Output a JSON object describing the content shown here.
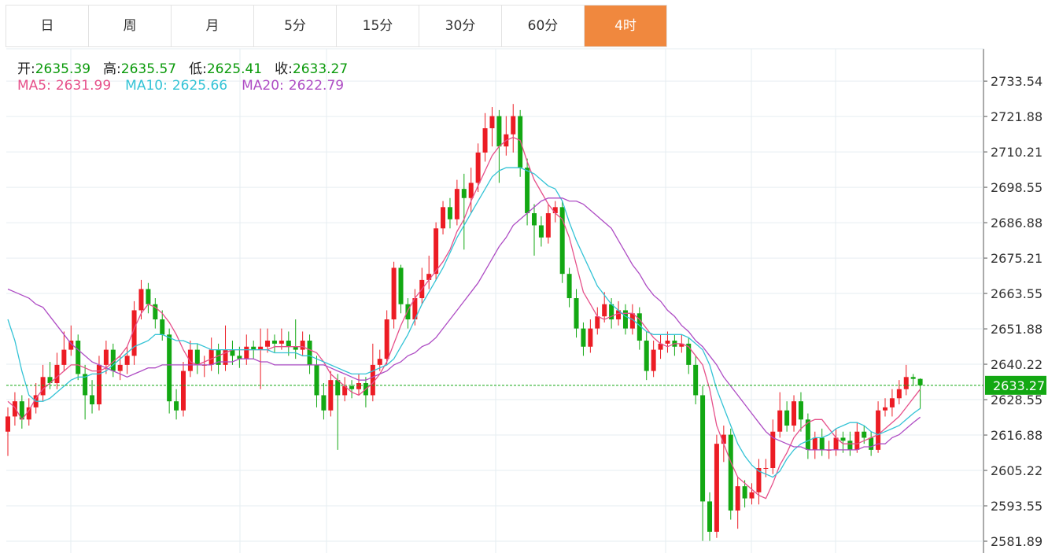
{
  "tabs": {
    "items": [
      "日",
      "周",
      "月",
      "5分",
      "15分",
      "30分",
      "60分",
      "4时"
    ],
    "active": 7
  },
  "chart_data": {
    "type": "candlestick",
    "ohlc_labels": [
      "开:",
      "高:",
      "低:",
      "收:"
    ],
    "open": [
      2618,
      2623,
      2628,
      2622,
      2626,
      2630,
      2636,
      2634,
      2640,
      2645,
      2648,
      2637,
      2630,
      2627,
      2640,
      2645,
      2638,
      2640,
      2643,
      2658,
      2665,
      2660,
      2655,
      2650,
      2628,
      2625,
      2638,
      2645,
      2640,
      2640,
      2645,
      2640,
      2645,
      2643,
      2642,
      2646,
      2645,
      2646,
      2648,
      2647,
      2648,
      2646,
      2645,
      2648,
      2640,
      2630,
      2625,
      2635,
      2630,
      2633,
      2632,
      2634,
      2630,
      2640,
      2642,
      2655,
      2672,
      2660,
      2655,
      2662,
      2668,
      2670,
      2685,
      2692,
      2688,
      2698,
      2695,
      2700,
      2710,
      2718,
      2722,
      2712,
      2716,
      2722,
      2705,
      2690,
      2686,
      2682,
      2690,
      2692,
      2670,
      2662,
      2652,
      2646,
      2652,
      2656,
      2660,
      2655,
      2658,
      2652,
      2657,
      2648,
      2638,
      2645,
      2647,
      2648,
      2646,
      2647,
      2640,
      2630,
      2595,
      2585,
      2614,
      2617,
      2592,
      2600,
      2596,
      2598,
      2606,
      2606,
      2618,
      2625,
      2620,
      2628,
      2622,
      2612,
      2616,
      2612,
      2612,
      2616,
      2615,
      2612,
      2618,
      2616,
      2612,
      2625,
      2626,
      2629,
      2632,
      2636,
      2635.39
    ],
    "high": [
      2626,
      2631,
      2630,
      2629,
      2634,
      2640,
      2641,
      2644,
      2651,
      2653,
      2650,
      2640,
      2635,
      2643,
      2648,
      2647,
      2643,
      2646,
      2661,
      2668,
      2667,
      2662,
      2658,
      2652,
      2632,
      2641,
      2648,
      2647,
      2643,
      2649,
      2647,
      2653,
      2648,
      2646,
      2650,
      2648,
      2652,
      2652,
      2650,
      2652,
      2651,
      2655,
      2651,
      2650,
      2643,
      2634,
      2638,
      2637,
      2636,
      2635,
      2637,
      2636,
      2647,
      2645,
      2658,
      2674,
      2673,
      2662,
      2665,
      2672,
      2676,
      2687,
      2694,
      2695,
      2701,
      2703,
      2705,
      2713,
      2723,
      2725,
      2724,
      2722,
      2726,
      2724,
      2708,
      2693,
      2689,
      2693,
      2694,
      2694,
      2672,
      2665,
      2654,
      2655,
      2659,
      2664,
      2662,
      2661,
      2660,
      2660,
      2659,
      2651,
      2648,
      2650,
      2651,
      2650,
      2650,
      2649,
      2643,
      2633,
      2598,
      2617,
      2620,
      2619,
      2603,
      2602,
      2601,
      2609,
      2609,
      2622,
      2631,
      2628,
      2630,
      2631,
      2624,
      2618,
      2619,
      2615,
      2619,
      2618,
      2618,
      2621,
      2620,
      2618,
      2628,
      2629,
      2632,
      2635,
      2640,
      2637,
      2635.57
    ],
    "low": [
      2610,
      2620,
      2619,
      2620,
      2624,
      2628,
      2632,
      2632,
      2638,
      2643,
      2635,
      2622,
      2624,
      2625,
      2637,
      2636,
      2635,
      2637,
      2640,
      2655,
      2657,
      2652,
      2648,
      2624,
      2622,
      2623,
      2636,
      2637,
      2636,
      2638,
      2637,
      2638,
      2640,
      2639,
      2640,
      2642,
      2632,
      2644,
      2644,
      2645,
      2643,
      2642,
      2643,
      2637,
      2626,
      2622,
      2623,
      2612,
      2628,
      2629,
      2630,
      2626,
      2628,
      2638,
      2640,
      2652,
      2657,
      2652,
      2653,
      2660,
      2665,
      2668,
      2683,
      2685,
      2686,
      2678,
      2690,
      2697,
      2707,
      2712,
      2700,
      2709,
      2710,
      2702,
      2686,
      2676,
      2679,
      2680,
      2687,
      2667,
      2659,
      2649,
      2643,
      2644,
      2650,
      2654,
      2652,
      2653,
      2650,
      2650,
      2645,
      2635,
      2636,
      2642,
      2644,
      2643,
      2644,
      2637,
      2627,
      2582,
      2582,
      2583,
      2608,
      2589,
      2586,
      2593,
      2594,
      2594,
      2603,
      2604,
      2616,
      2618,
      2618,
      2618,
      2609,
      2609,
      2610,
      2609,
      2610,
      2611,
      2610,
      2611,
      2614,
      2610,
      2611,
      2623,
      2623,
      2627,
      2630,
      2633,
      2625.41
    ],
    "close": [
      2623,
      2628,
      2622,
      2626,
      2630,
      2636,
      2634,
      2640,
      2645,
      2648,
      2637,
      2630,
      2627,
      2640,
      2645,
      2638,
      2640,
      2643,
      2658,
      2665,
      2660,
      2655,
      2650,
      2628,
      2625,
      2638,
      2645,
      2640,
      2640,
      2645,
      2640,
      2645,
      2643,
      2642,
      2646,
      2645,
      2646,
      2648,
      2647,
      2648,
      2646,
      2645,
      2648,
      2640,
      2630,
      2625,
      2635,
      2630,
      2633,
      2632,
      2634,
      2630,
      2640,
      2642,
      2655,
      2672,
      2660,
      2655,
      2662,
      2668,
      2670,
      2685,
      2692,
      2688,
      2698,
      2695,
      2700,
      2710,
      2718,
      2722,
      2712,
      2716,
      2722,
      2705,
      2690,
      2686,
      2682,
      2690,
      2692,
      2670,
      2662,
      2652,
      2646,
      2652,
      2656,
      2660,
      2655,
      2658,
      2652,
      2657,
      2648,
      2638,
      2645,
      2647,
      2648,
      2646,
      2647,
      2640,
      2630,
      2595,
      2585,
      2614,
      2617,
      2592,
      2600,
      2596,
      2598,
      2606,
      2606,
      2618,
      2625,
      2620,
      2628,
      2622,
      2612,
      2616,
      2612,
      2612,
      2616,
      2615,
      2612,
      2618,
      2616,
      2612,
      2625,
      2626,
      2629,
      2632,
      2636,
      2635.39,
      2633.27
    ],
    "up_color": "#ec1c24",
    "down_color": "#13a813",
    "ohlc_value_color": "#0b9a0b",
    "series": [
      {
        "name": "MA5:",
        "color": "#e6508a",
        "values": [
          2628,
          2626,
          2622,
          2625,
          2629,
          2632,
          2634,
          2636,
          2638,
          2640,
          2640,
          2639,
          2638,
          2638,
          2639,
          2641,
          2643,
          2646,
          2652,
          2657,
          2660,
          2659,
          2657,
          2654,
          2650,
          2645,
          2641,
          2640,
          2641,
          2642,
          2643,
          2644,
          2645,
          2645,
          2645,
          2645,
          2645,
          2645,
          2646,
          2646,
          2646,
          2646,
          2646,
          2645,
          2644,
          2641,
          2637,
          2635,
          2633,
          2631,
          2630,
          2632,
          2634,
          2637,
          2641,
          2647,
          2653,
          2658,
          2662,
          2665,
          2668,
          2671,
          2674,
          2678,
          2684,
          2688,
          2694,
          2699,
          2704,
          2709,
          2712,
          2714,
          2715,
          2714,
          2707,
          2701,
          2697,
          2693,
          2690,
          2688,
          2682,
          2673,
          2664,
          2660,
          2656,
          2655,
          2656,
          2657,
          2657,
          2657,
          2655,
          2652,
          2649,
          2647,
          2646,
          2647,
          2647,
          2646,
          2643,
          2640,
          2632,
          2620,
          2614,
          2608,
          2603,
          2601,
          2599,
          2597,
          2596,
          2601,
          2607,
          2611,
          2616,
          2619,
          2621,
          2622,
          2622,
          2619,
          2616,
          2614,
          2614,
          2614,
          2615,
          2616,
          2617,
          2619,
          2621,
          2623,
          2626,
          2629,
          2631.99
        ]
      },
      {
        "name": "MA10:",
        "color": "#34c3d6",
        "values": [
          2655,
          2648,
          2638,
          2630,
          2628,
          2628,
          2629,
          2631,
          2633,
          2635,
          2636,
          2636,
          2637,
          2637,
          2638,
          2640,
          2642,
          2644,
          2646,
          2647,
          2648,
          2650,
          2650,
          2649,
          2648,
          2648,
          2647,
          2647,
          2646,
          2645,
          2645,
          2645,
          2645,
          2645,
          2645,
          2645,
          2645,
          2645,
          2644,
          2644,
          2644,
          2644,
          2643,
          2643,
          2642,
          2641,
          2640,
          2639,
          2638,
          2637,
          2637,
          2637,
          2638,
          2639,
          2640,
          2642,
          2646,
          2650,
          2655,
          2660,
          2664,
          2668,
          2672,
          2677,
          2682,
          2686,
          2690,
          2694,
          2698,
          2702,
          2704,
          2705,
          2705,
          2705,
          2704,
          2703,
          2701,
          2699,
          2698,
          2694,
          2687,
          2681,
          2676,
          2671,
          2666,
          2663,
          2660,
          2658,
          2656,
          2655,
          2653,
          2651,
          2650,
          2650,
          2650,
          2650,
          2650,
          2649,
          2647,
          2645,
          2640,
          2632,
          2626,
          2620,
          2614,
          2610,
          2607,
          2605,
          2604,
          2603,
          2605,
          2609,
          2612,
          2614,
          2615,
          2616,
          2616,
          2617,
          2619,
          2620,
          2621,
          2621,
          2620,
          2618,
          2617,
          2618,
          2619,
          2620,
          2622,
          2624,
          2625.66
        ]
      },
      {
        "name": "MA20:",
        "color": "#ae4cc4",
        "values": [
          2665,
          2664,
          2663,
          2662,
          2660,
          2659,
          2656,
          2653,
          2650,
          2647,
          2645,
          2643,
          2641,
          2640,
          2639,
          2638,
          2637,
          2636,
          2637,
          2638,
          2639,
          2639,
          2640,
          2640,
          2640,
          2640,
          2640,
          2640,
          2640,
          2640,
          2641,
          2641,
          2641,
          2642,
          2642,
          2642,
          2641,
          2641,
          2640,
          2640,
          2640,
          2640,
          2640,
          2640,
          2640,
          2640,
          2639,
          2638,
          2637,
          2636,
          2635,
          2635,
          2636,
          2637,
          2638,
          2640,
          2641,
          2643,
          2644,
          2646,
          2647,
          2649,
          2652,
          2655,
          2658,
          2661,
          2664,
          2667,
          2671,
          2675,
          2679,
          2682,
          2686,
          2688,
          2690,
          2692,
          2694,
          2695,
          2695,
          2695,
          2694,
          2694,
          2693,
          2691,
          2689,
          2687,
          2685,
          2681,
          2677,
          2673,
          2670,
          2666,
          2663,
          2661,
          2658,
          2656,
          2653,
          2651,
          2648,
          2646,
          2643,
          2640,
          2636,
          2633,
          2630,
          2627,
          2624,
          2621,
          2618,
          2616,
          2615,
          2614,
          2613,
          2613,
          2612,
          2612,
          2612,
          2612,
          2612,
          2612,
          2612,
          2612,
          2613,
          2613,
          2614,
          2614,
          2616,
          2617,
          2619,
          2621,
          2622.79
        ]
      }
    ],
    "ylim": [
      2578,
      2744.2
    ],
    "yticks": [
      2733.54,
      2721.88,
      2710.21,
      2698.55,
      2686.88,
      2675.21,
      2663.55,
      2651.88,
      2640.22,
      2628.55,
      2616.88,
      2605.22,
      2593.55,
      2581.89
    ],
    "grid": true
  }
}
